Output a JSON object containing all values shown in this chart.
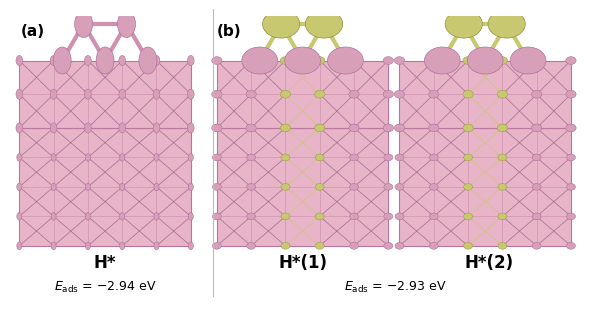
{
  "panel_a_label": "(a)",
  "panel_b_label": "(b)",
  "label_h_star": "H*",
  "label_h_star_1": "H*(1)",
  "label_h_star_2": "H*(2)",
  "eads_a": "−2.94 eV",
  "eads_b": "−2.93 eV",
  "bg_color": "#ffffff",
  "panel_bg_pink": "#e8b4c8",
  "panel_bg_pink2": "#d8a0b8",
  "yellow_green": "#c8c870",
  "bond_pink": "#d090b0",
  "bond_dark": "#906080",
  "bond_gray": "#d0d0d0",
  "atom_white": "#f8f8f8",
  "figsize": [
    5.94,
    3.12
  ],
  "dpi": 100,
  "label_fontsize": 11,
  "energy_fontsize": 9,
  "title_fontsize": 12
}
